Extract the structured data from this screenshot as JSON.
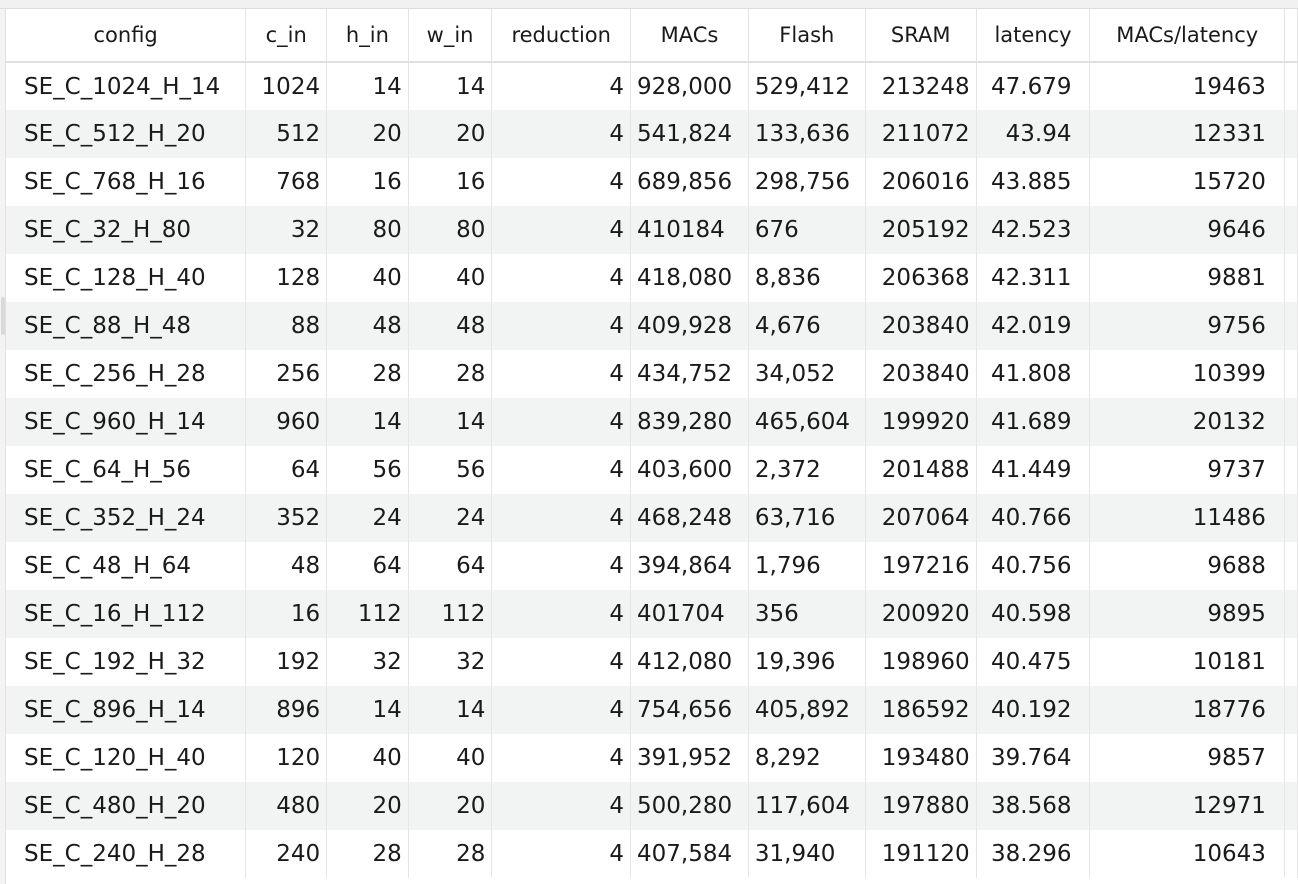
{
  "table": {
    "columns": [
      "config",
      "c_in",
      "h_in",
      "w_in",
      "reduction",
      "MACs",
      "Flash",
      "SRAM",
      "latency",
      "MACs/latency"
    ],
    "rows": [
      [
        "SE_C_1024_H_14",
        "1024",
        "14",
        "14",
        "4",
        "928,000",
        "529,412",
        "213248",
        "47.679",
        "19463"
      ],
      [
        "SE_C_512_H_20",
        "512",
        "20",
        "20",
        "4",
        "541,824",
        "133,636",
        "211072",
        "43.94",
        "12331"
      ],
      [
        "SE_C_768_H_16",
        "768",
        "16",
        "16",
        "4",
        "689,856",
        "298,756",
        "206016",
        "43.885",
        "15720"
      ],
      [
        "SE_C_32_H_80",
        "32",
        "80",
        "80",
        "4",
        "410184",
        "676",
        "205192",
        "42.523",
        "9646"
      ],
      [
        "SE_C_128_H_40",
        "128",
        "40",
        "40",
        "4",
        "418,080",
        "8,836",
        "206368",
        "42.311",
        "9881"
      ],
      [
        "SE_C_88_H_48",
        "88",
        "48",
        "48",
        "4",
        "409,928",
        "4,676",
        "203840",
        "42.019",
        "9756"
      ],
      [
        "SE_C_256_H_28",
        "256",
        "28",
        "28",
        "4",
        "434,752",
        "34,052",
        "203840",
        "41.808",
        "10399"
      ],
      [
        "SE_C_960_H_14",
        "960",
        "14",
        "14",
        "4",
        "839,280",
        "465,604",
        "199920",
        "41.689",
        "20132"
      ],
      [
        "SE_C_64_H_56",
        "64",
        "56",
        "56",
        "4",
        "403,600",
        "2,372",
        "201488",
        "41.449",
        "9737"
      ],
      [
        "SE_C_352_H_24",
        "352",
        "24",
        "24",
        "4",
        "468,248",
        "63,716",
        "207064",
        "40.766",
        "11486"
      ],
      [
        "SE_C_48_H_64",
        "48",
        "64",
        "64",
        "4",
        "394,864",
        "1,796",
        "197216",
        "40.756",
        "9688"
      ],
      [
        "SE_C_16_H_112",
        "16",
        "112",
        "112",
        "4",
        "401704",
        "356",
        "200920",
        "40.598",
        "9895"
      ],
      [
        "SE_C_192_H_32",
        "192",
        "32",
        "32",
        "4",
        "412,080",
        "19,396",
        "198960",
        "40.475",
        "10181"
      ],
      [
        "SE_C_896_H_14",
        "896",
        "14",
        "14",
        "4",
        "754,656",
        "405,892",
        "186592",
        "40.192",
        "18776"
      ],
      [
        "SE_C_120_H_40",
        "120",
        "40",
        "40",
        "4",
        "391,952",
        "8,292",
        "193480",
        "39.764",
        "9857"
      ],
      [
        "SE_C_480_H_20",
        "480",
        "20",
        "20",
        "4",
        "500,280",
        "117,604",
        "197880",
        "38.568",
        "12971"
      ],
      [
        "SE_C_240_H_28",
        "240",
        "28",
        "28",
        "4",
        "407,584",
        "31,940",
        "191120",
        "38.296",
        "10643"
      ]
    ]
  }
}
